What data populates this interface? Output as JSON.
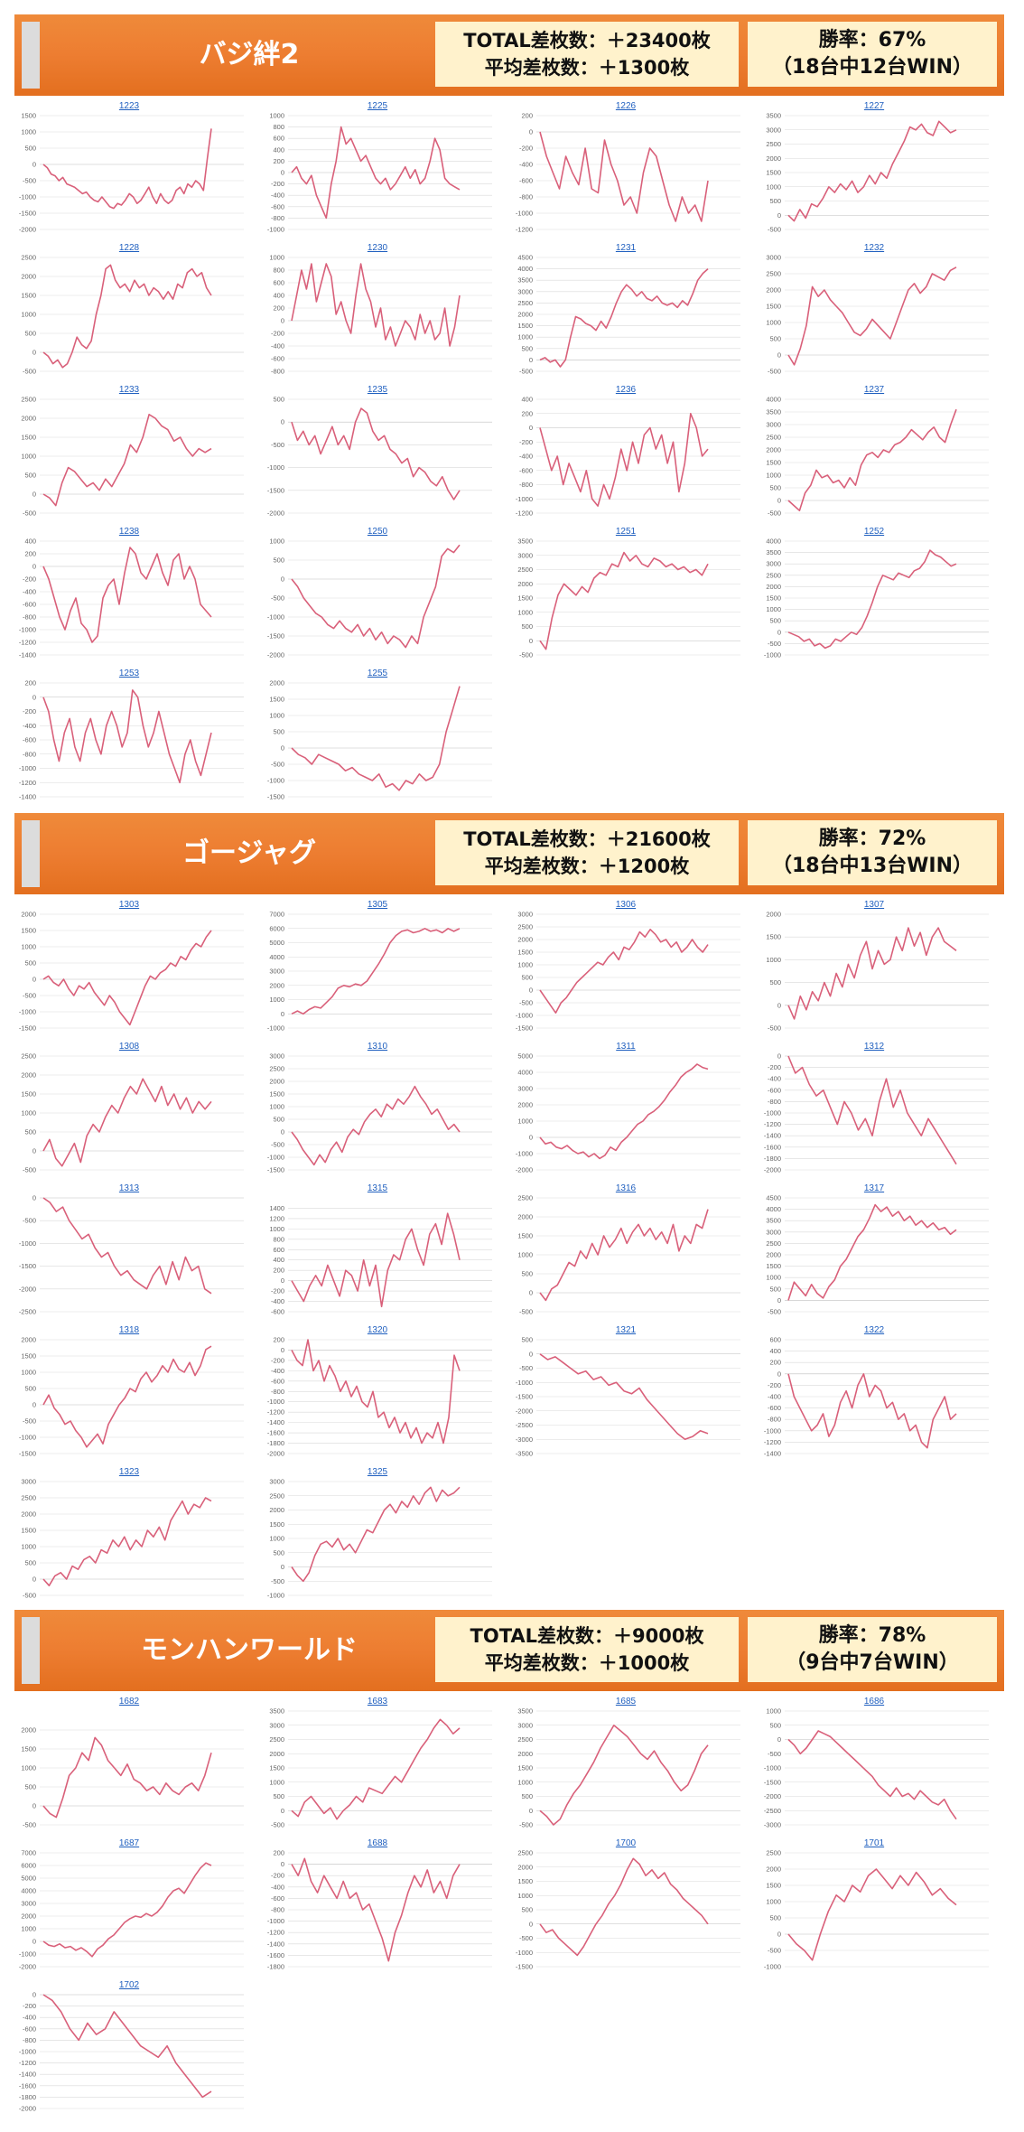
{
  "colors": {
    "banner": "#ed7d31",
    "box": "#fff2cc",
    "line": "#d9607a",
    "grid": "#d9d9d9",
    "link": "#1f5fbf"
  },
  "sections": [
    {
      "title": "バジ絆2",
      "total": "TOTAL差枚数：＋23400枚",
      "avg": "平均差枚数：＋1300枚",
      "win_rate": "勝率：67%",
      "win_detail": "（18台中12台WIN）",
      "chart_data": [
        {
          "type": "line",
          "title": "1223",
          "ylim": [
            -2000,
            1500
          ],
          "yticks": [
            1500,
            1000,
            500,
            0,
            -500,
            -1000,
            -1500,
            -2000
          ],
          "values": [
            0,
            -100,
            -300,
            -350,
            -500,
            -400,
            -600,
            -650,
            -700,
            -800,
            -900,
            -850,
            -1000,
            -1100,
            -1150,
            -1000,
            -1150,
            -1300,
            -1350,
            -1200,
            -1250,
            -1100,
            -900,
            -1000,
            -1200,
            -1100,
            -900,
            -700,
            -1000,
            -1200,
            -900,
            -1100,
            -1200,
            -1100,
            -800,
            -700,
            -900,
            -600,
            -700,
            -500,
            -600,
            -800,
            200,
            1100
          ]
        },
        {
          "type": "line",
          "title": "1225",
          "ylim": [
            -1000,
            1000
          ],
          "yticks": [
            1000,
            800,
            600,
            400,
            200,
            0,
            -200,
            -400,
            -600,
            -800,
            -1000
          ],
          "values": [
            0,
            100,
            -100,
            -200,
            -50,
            -400,
            -600,
            -800,
            -200,
            200,
            800,
            500,
            600,
            400,
            200,
            300,
            100,
            -100,
            -200,
            -100,
            -300,
            -200,
            -50,
            100,
            -100,
            50,
            -200,
            -100,
            200,
            600,
            400,
            -100,
            -200,
            -250,
            -300
          ]
        },
        {
          "type": "line",
          "title": "1226",
          "ylim": [
            -1200,
            200
          ],
          "yticks": [
            200,
            0,
            -200,
            -400,
            -600,
            -800,
            -1000,
            -1200
          ],
          "values": [
            0,
            -300,
            -500,
            -700,
            -300,
            -500,
            -650,
            -200,
            -700,
            -750,
            -100,
            -400,
            -600,
            -900,
            -800,
            -1000,
            -500,
            -200,
            -300,
            -600,
            -900,
            -1100,
            -800,
            -1000,
            -900,
            -1100,
            -600
          ]
        },
        {
          "type": "line",
          "title": "1227",
          "ylim": [
            -500,
            3500
          ],
          "yticks": [
            3500,
            3000,
            2500,
            2000,
            1500,
            1000,
            500,
            0,
            -500
          ],
          "values": [
            0,
            -200,
            200,
            -100,
            400,
            300,
            600,
            1000,
            800,
            1100,
            900,
            1200,
            800,
            1000,
            1400,
            1100,
            1500,
            1300,
            1800,
            2200,
            2600,
            3100,
            3000,
            3200,
            2900,
            2800,
            3300,
            3100,
            2900,
            3000
          ]
        }
      ]
    }
  ]
}
